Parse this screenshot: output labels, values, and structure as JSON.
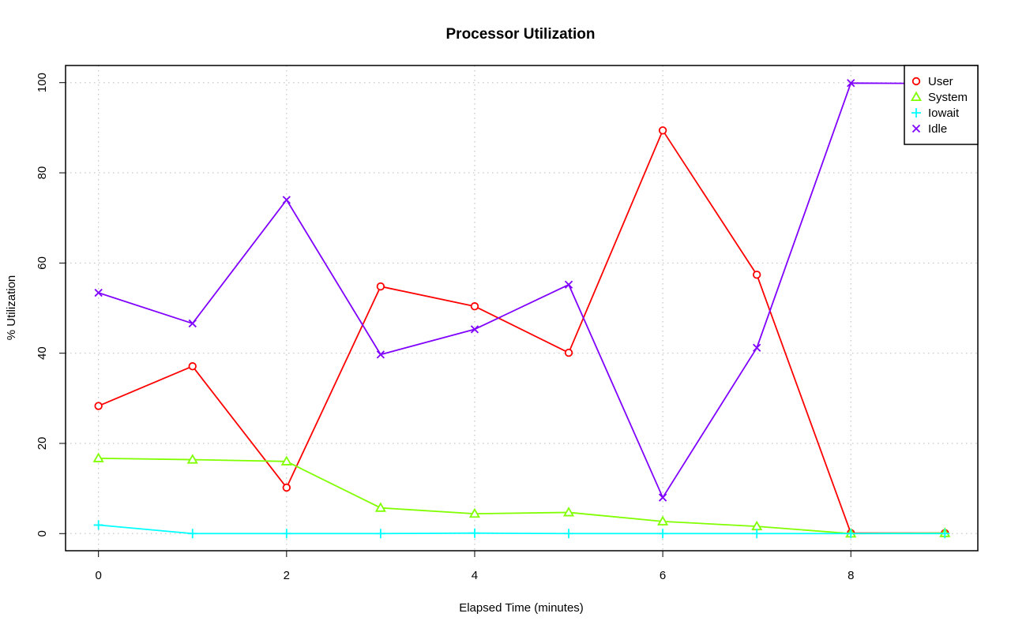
{
  "chart_data": {
    "type": "line",
    "title": "Processor Utilization",
    "xlabel": "Elapsed Time (minutes)",
    "ylabel": "% Utilization",
    "xlim": [
      -0.35,
      9.35
    ],
    "ylim": [
      -3.8,
      103.8
    ],
    "x_ticks": [
      0,
      2,
      4,
      6,
      8
    ],
    "y_ticks": [
      0,
      20,
      40,
      60,
      80,
      100
    ],
    "grid": true,
    "legend_position": "top-right",
    "x": [
      0,
      1,
      2,
      3,
      4,
      5,
      6,
      7,
      8,
      9
    ],
    "series": [
      {
        "name": "User",
        "color": "#ff0000",
        "marker": "circle",
        "values": [
          28.3,
          37.1,
          10.2,
          54.8,
          50.4,
          40.1,
          89.4,
          57.4,
          0.1,
          0.1
        ]
      },
      {
        "name": "System",
        "color": "#80ff00",
        "marker": "triangle",
        "values": [
          16.7,
          16.4,
          16.0,
          5.7,
          4.4,
          4.7,
          2.7,
          1.6,
          0.0,
          0.1
        ]
      },
      {
        "name": "Iowait",
        "color": "#00ffff",
        "marker": "plus",
        "values": [
          1.9,
          0.0,
          0.0,
          0.0,
          0.1,
          0.0,
          0.0,
          0.0,
          0.0,
          0.0
        ]
      },
      {
        "name": "Idle",
        "color": "#8000ff",
        "marker": "cross",
        "values": [
          53.4,
          46.6,
          74.0,
          39.7,
          45.3,
          55.2,
          8.0,
          41.2,
          99.9,
          99.8
        ]
      }
    ]
  }
}
